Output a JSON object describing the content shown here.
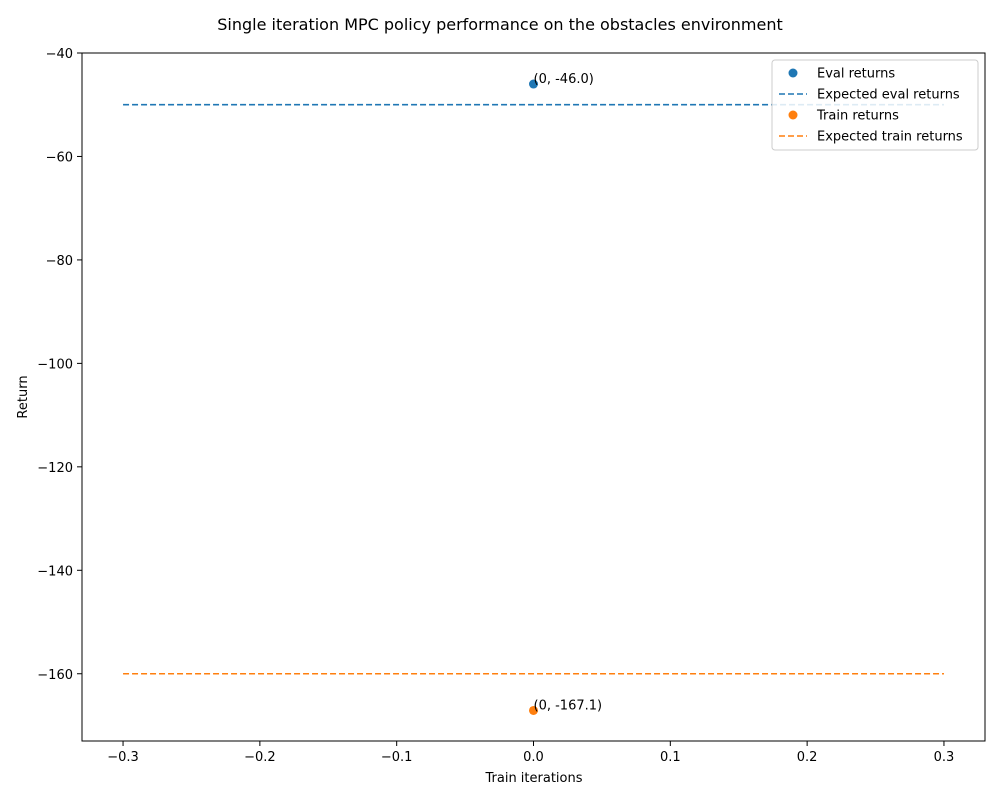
{
  "chart_data": {
    "type": "scatter",
    "title": "Single iteration MPC policy performance on the obstacles environment",
    "xlabel": "Train iterations",
    "ylabel": "Return",
    "xlim": [
      -0.33,
      0.33
    ],
    "ylim": [
      -173,
      -40
    ],
    "x_ticks": [
      -0.3,
      -0.2,
      -0.1,
      0.0,
      0.1,
      0.2,
      0.3
    ],
    "x_tick_labels": [
      "−0.3",
      "−0.2",
      "−0.1",
      "0.0",
      "0.1",
      "0.2",
      "0.3"
    ],
    "y_ticks": [
      -40,
      -60,
      -80,
      -100,
      -120,
      -140,
      -160
    ],
    "y_tick_labels": [
      "−40",
      "−60",
      "−80",
      "−100",
      "−120",
      "−140",
      "−160"
    ],
    "grid": false,
    "legend_position": "top-right",
    "series": [
      {
        "name": "Eval returns",
        "kind": "scatter",
        "color": "#1f77b4",
        "x": [
          0
        ],
        "y": [
          -46.0
        ]
      },
      {
        "name": "Expected eval returns",
        "kind": "line",
        "style": "dashed",
        "color": "#1f77b4",
        "x": [
          -0.3,
          0.3
        ],
        "y": [
          -50,
          -50
        ]
      },
      {
        "name": "Train returns",
        "kind": "scatter",
        "color": "#ff7f0e",
        "x": [
          0
        ],
        "y": [
          -167.1
        ]
      },
      {
        "name": "Expected train returns",
        "kind": "line",
        "style": "dashed",
        "color": "#ff7f0e",
        "x": [
          -0.3,
          0.3
        ],
        "y": [
          -160,
          -160
        ]
      }
    ],
    "annotations": [
      {
        "text": "(0, -46.0)",
        "x": 0,
        "y": -46.0
      },
      {
        "text": "(0, -167.1)",
        "x": 0,
        "y": -167.1
      }
    ]
  }
}
